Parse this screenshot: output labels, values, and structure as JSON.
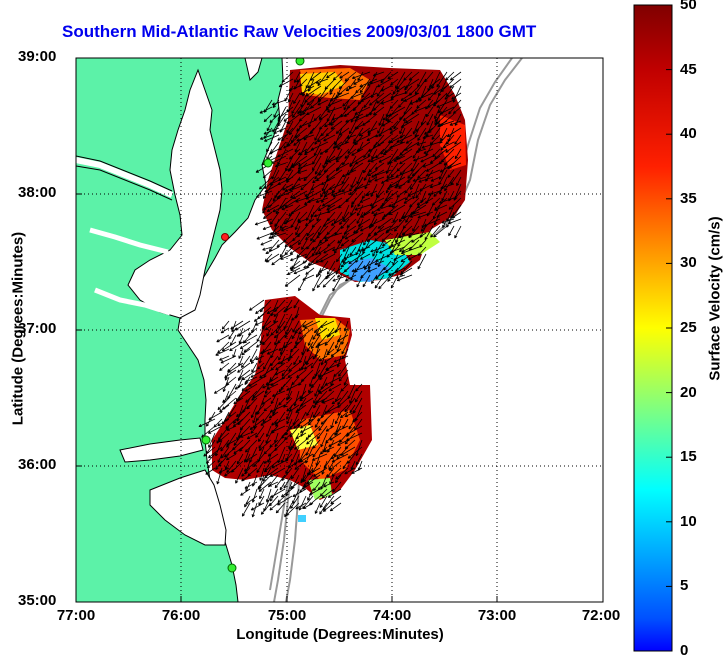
{
  "title": "Southern Mid-Atlantic Raw Velocities 2009/03/01 1800 GMT",
  "x_axis": {
    "label": "Longitude (Degrees:Minutes)",
    "ticks": [
      "77:00",
      "76:00",
      "75:00",
      "74:00",
      "73:00",
      "72:00"
    ]
  },
  "y_axis": {
    "label": "Latitude (Degrees:Minutes)",
    "ticks": [
      "39:00",
      "38:00",
      "37:00",
      "36:00",
      "35:00"
    ]
  },
  "colorbar": {
    "label": "Surface Velocity (cm/s)",
    "ticks": [
      "50",
      "45",
      "40",
      "35",
      "30",
      "25",
      "20",
      "15",
      "10",
      "5",
      "0"
    ],
    "min": 0,
    "max": 50
  },
  "colors": {
    "land": "#5cf2a8",
    "water": "#ffffff",
    "coastline": "#000000",
    "bathymetry": "#999999",
    "station_marker": "#33ee33",
    "title_color": "#0000ee"
  },
  "map_extent": {
    "lon": [
      -77,
      -72
    ],
    "lat": [
      35,
      39
    ]
  },
  "grid": true
}
